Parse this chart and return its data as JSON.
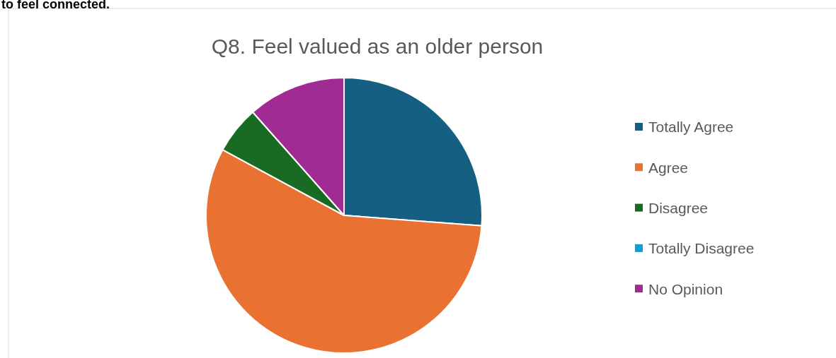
{
  "chart_data": {
    "type": "pie",
    "title": "Q8. Feel valued as an older person",
    "annotations": [
      "to feel connected."
    ],
    "categories": [
      "Totally Agree",
      "Agree",
      "Disagree",
      "Totally Disagree",
      "No Opinion"
    ],
    "values": [
      26.2,
      56.7,
      5.6,
      0,
      11.5
    ],
    "colors": [
      "#156082",
      "#e97132",
      "#196b24",
      "#0f9ed5",
      "#a02b93"
    ],
    "legend": "right"
  }
}
